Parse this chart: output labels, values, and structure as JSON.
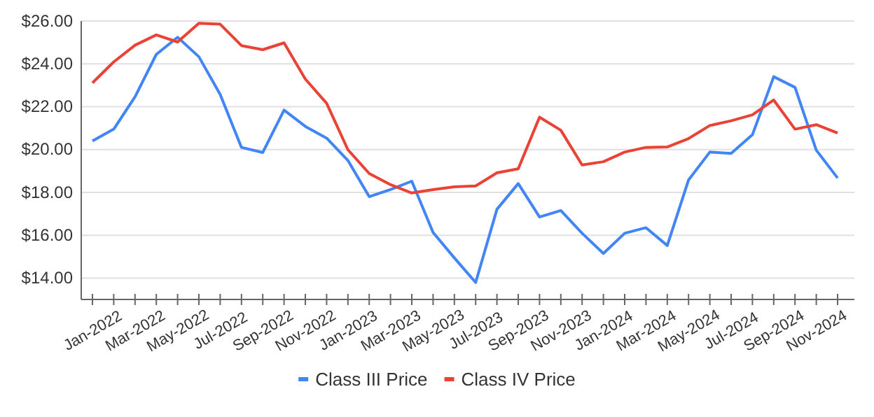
{
  "chart_data": {
    "type": "line",
    "categories": [
      "Jan-2022",
      null,
      "Mar-2022",
      null,
      "May-2022",
      null,
      "Jul-2022",
      null,
      "Sep-2022",
      null,
      "Nov-2022",
      null,
      "Jan-2023",
      null,
      "Mar-2023",
      null,
      "May-2023",
      null,
      "Jul-2023",
      null,
      "Sep-2023",
      null,
      "Nov-2023",
      null,
      "Jan-2024",
      null,
      "Mar-2024",
      null,
      "May-2024",
      null,
      "Jul-2024",
      null,
      "Sep-2024",
      null,
      "Nov-2024",
      null
    ],
    "series": [
      {
        "name": "Class III Price",
        "color": "#4285f4",
        "values": [
          20.4,
          20.95,
          22.46,
          24.44,
          25.24,
          24.33,
          22.57,
          20.1,
          19.86,
          21.84,
          21.08,
          20.53,
          19.49,
          17.8,
          18.13,
          18.52,
          16.13,
          14.94,
          13.79,
          17.21,
          18.41,
          16.85,
          17.15,
          16.09,
          15.15,
          16.09,
          16.35,
          15.52,
          18.58,
          19.88,
          19.82,
          20.69,
          23.4,
          22.9,
          19.97,
          18.67
        ]
      },
      {
        "name": "Class IV Price",
        "color": "#ea4335",
        "values": [
          23.11,
          24.09,
          24.87,
          25.35,
          25.02,
          25.89,
          25.85,
          24.85,
          24.66,
          24.98,
          23.29,
          22.16,
          19.99,
          18.88,
          18.36,
          17.97,
          18.13,
          18.26,
          18.3,
          18.91,
          19.1,
          21.51,
          20.9,
          19.28,
          19.43,
          19.88,
          20.1,
          20.12,
          20.51,
          21.12,
          21.34,
          21.62,
          22.31,
          20.95,
          21.16,
          20.77
        ]
      }
    ],
    "ylim": [
      13,
      26
    ],
    "yticks": [
      {
        "value": 14,
        "label": "$14.00"
      },
      {
        "value": 16,
        "label": "$16.00"
      },
      {
        "value": 18,
        "label": "$18.00"
      },
      {
        "value": 20,
        "label": "$20.00"
      },
      {
        "value": 22,
        "label": "$22.00"
      },
      {
        "value": 24,
        "label": "$24.00"
      },
      {
        "value": 26,
        "label": "$26.00"
      }
    ],
    "grid": "y",
    "legend": "bottom",
    "marker": "none",
    "line_style": "solid"
  }
}
